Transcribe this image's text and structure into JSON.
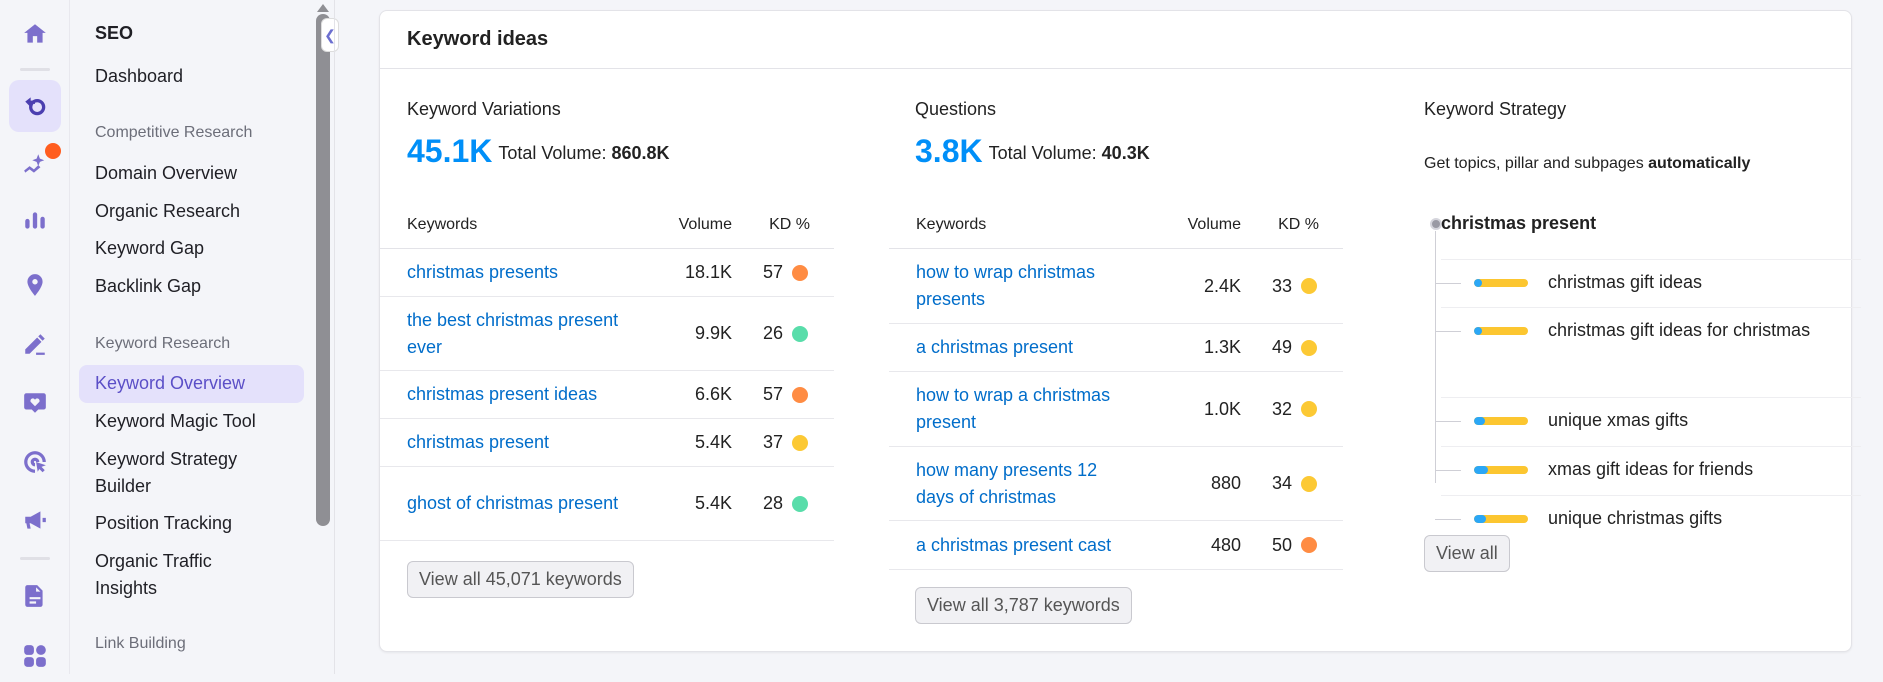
{
  "rail": {
    "icons": [
      "home-icon",
      "seo-icon",
      "ai-sparkle-icon",
      "bar-chart-icon",
      "location-pin-icon",
      "edit-pen-icon",
      "heart-chat-icon",
      "cursor-target-icon",
      "megaphone-icon",
      "report-icon",
      "apps-grid-icon"
    ],
    "active": "seo-icon",
    "badge_color": "#ff5d1f"
  },
  "nav": {
    "title": "SEO",
    "dashboard": "Dashboard",
    "sections": [
      {
        "heading": "Competitive Research",
        "items": [
          "Domain Overview",
          "Organic Research",
          "Keyword Gap",
          "Backlink Gap"
        ]
      },
      {
        "heading": "Keyword Research",
        "items": [
          "Keyword Overview",
          "Keyword Magic Tool",
          "Keyword Strategy Builder",
          "Position Tracking",
          "Organic Traffic Insights"
        ]
      },
      {
        "heading": "Link Building",
        "items": []
      }
    ],
    "active": "Keyword Overview"
  },
  "card": {
    "title": "Keyword ideas"
  },
  "variations": {
    "title": "Keyword Variations",
    "count": "45.1K",
    "total_label": "Total Volume:",
    "total": "860.8K",
    "headers": [
      "Keywords",
      "Volume",
      "KD %"
    ],
    "rows": [
      {
        "keyword": "christmas presents",
        "volume": "18.1K",
        "kd": "57",
        "color": "#ff8c43"
      },
      {
        "keyword": "the best christmas present ever",
        "volume": "9.9K",
        "kd": "26",
        "color": "#59ddaa"
      },
      {
        "keyword": "christmas present ideas",
        "volume": "6.6K",
        "kd": "57",
        "color": "#ff8c43"
      },
      {
        "keyword": "christmas present",
        "volume": "5.4K",
        "kd": "37",
        "color": "#fcc934"
      },
      {
        "keyword": "ghost of christmas present",
        "volume": "5.4K",
        "kd": "28",
        "color": "#59ddaa"
      }
    ],
    "button": "View all 45,071 keywords"
  },
  "questions": {
    "title": "Questions",
    "count": "3.8K",
    "total_label": "Total Volume:",
    "total": "40.3K",
    "headers": [
      "Keywords",
      "Volume",
      "KD %"
    ],
    "rows": [
      {
        "keyword": "how to wrap christmas presents",
        "volume": "2.4K",
        "kd": "33",
        "color": "#fcc934"
      },
      {
        "keyword": "a christmas present",
        "volume": "1.3K",
        "kd": "49",
        "color": "#fcc934"
      },
      {
        "keyword": "how to wrap a christmas present",
        "volume": "1.0K",
        "kd": "32",
        "color": "#fcc934"
      },
      {
        "keyword": "how many presents 12 days of christmas",
        "volume": "880",
        "kd": "34",
        "color": "#fcc934"
      },
      {
        "keyword": "a christmas present cast",
        "volume": "480",
        "kd": "50",
        "color": "#ff8c43"
      }
    ],
    "button": "View all 3,787 keywords"
  },
  "strategy": {
    "title": "Keyword Strategy",
    "subtitle_pre": "Get topics, pillar and subpages ",
    "subtitle_bold": "automatically",
    "root": "christmas present",
    "children": [
      {
        "label": "christmas gift ideas",
        "blue_share": 0.15
      },
      {
        "label": "christmas gift ideas for christmas",
        "blue_share": 0.15
      },
      {
        "label": "unique xmas gifts",
        "blue_share": 0.2
      },
      {
        "label": "xmas gift ideas for friends",
        "blue_share": 0.25
      },
      {
        "label": "unique christmas gifts",
        "blue_share": 0.22
      }
    ],
    "button": "View all"
  }
}
